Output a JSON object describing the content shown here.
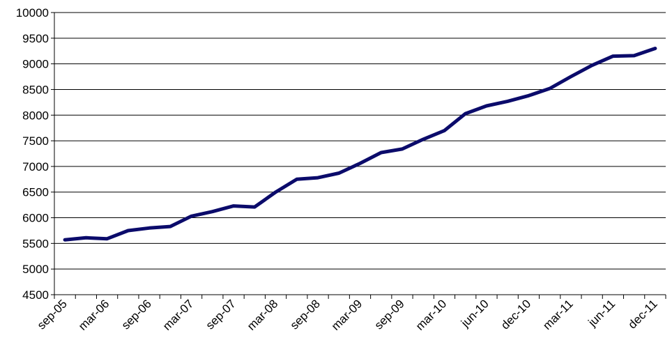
{
  "chart_data": {
    "type": "line",
    "categories": [
      "sep-05",
      null,
      "mar-06",
      null,
      "sep-06",
      null,
      "mar-07",
      null,
      "sep-07",
      null,
      "mar-08",
      null,
      "sep-08",
      null,
      "mar-09",
      null,
      "sep-09",
      null,
      "mar-10",
      null,
      "jun-10",
      null,
      "dec-10",
      null,
      "mar-11",
      null,
      "jun-11",
      null,
      "dec-11"
    ],
    "values": [
      5570,
      5610,
      5590,
      5750,
      5800,
      5830,
      6030,
      6120,
      6230,
      6210,
      6500,
      6750,
      6780,
      6870,
      7060,
      7270,
      7340,
      7530,
      7700,
      8030,
      8180,
      8270,
      8380,
      8520,
      8750,
      8970,
      9150,
      9160,
      9300
    ],
    "color": "#0b0b6b",
    "ylim": [
      4500,
      10000
    ],
    "yticks": [
      4500,
      5000,
      5500,
      6000,
      6500,
      7000,
      7500,
      8000,
      8500,
      9000,
      9500,
      10000
    ],
    "grid": true
  }
}
